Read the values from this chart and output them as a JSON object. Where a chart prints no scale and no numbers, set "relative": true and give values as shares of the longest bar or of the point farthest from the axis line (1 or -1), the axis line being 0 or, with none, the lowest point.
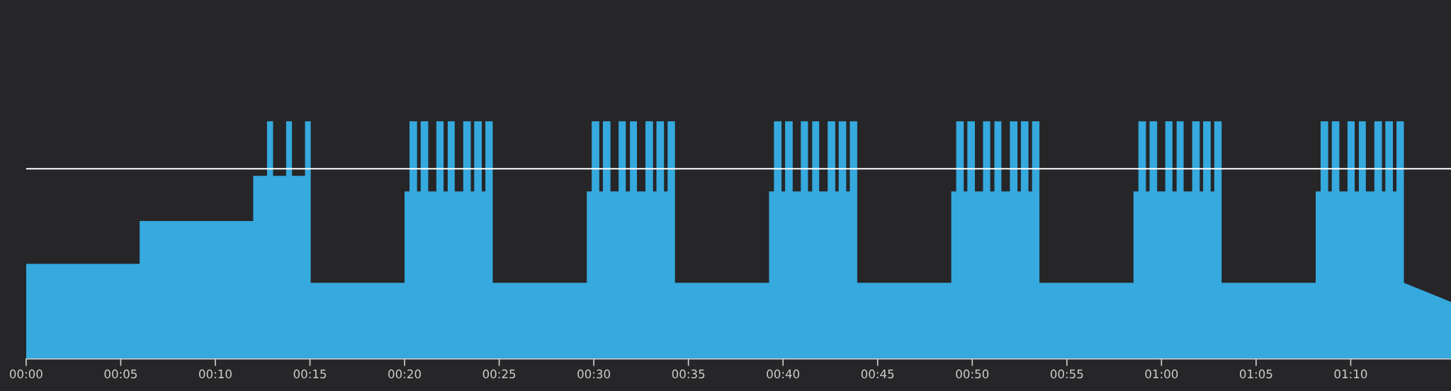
{
  "chart_data": {
    "type": "area",
    "relative": true,
    "grid": false,
    "legend": false,
    "tick_labels": "x",
    "xlim": [
      0,
      75.3
    ],
    "xticks": [
      {
        "value": 0,
        "label": "00:00"
      },
      {
        "value": 5,
        "label": "00:05"
      },
      {
        "value": 10,
        "label": "00:10"
      },
      {
        "value": 15,
        "label": "00:15"
      },
      {
        "value": 20,
        "label": "00:20"
      },
      {
        "value": 25,
        "label": "00:25"
      },
      {
        "value": 30,
        "label": "00:30"
      },
      {
        "value": 35,
        "label": "00:35"
      },
      {
        "value": 40,
        "label": "00:40"
      },
      {
        "value": 45,
        "label": "00:45"
      },
      {
        "value": 50,
        "label": "00:50"
      },
      {
        "value": 55,
        "label": "00:55"
      },
      {
        "value": 60,
        "label": "01:00"
      },
      {
        "value": 65,
        "label": "01:05"
      },
      {
        "value": 70,
        "label": "01:10"
      }
    ],
    "ref_lines": [
      {
        "axis": "y",
        "value": 0.8,
        "color": "#ffffff"
      }
    ],
    "series": [
      {
        "color": "#36a9de",
        "x": [
          0,
          6,
          6,
          12,
          12,
          12.73,
          12.73,
          13.05,
          13.05,
          13.74,
          13.74,
          14.05,
          14.05,
          14.74,
          14.74,
          15.04,
          15.04,
          20.0,
          20.0,
          20.26,
          20.26,
          20.66,
          20.66,
          20.85,
          20.85,
          21.25,
          21.25,
          21.68,
          21.68,
          22.06,
          22.06,
          22.28,
          22.28,
          22.65,
          22.65,
          23.1,
          23.1,
          23.5,
          23.5,
          23.68,
          23.68,
          24.08,
          24.08,
          24.27,
          24.27,
          24.66,
          24.66,
          29.63,
          29.63,
          29.89,
          29.89,
          30.29,
          30.29,
          30.48,
          30.48,
          30.88,
          30.88,
          31.31,
          31.31,
          31.69,
          31.69,
          31.91,
          31.91,
          32.28,
          32.28,
          32.73,
          32.73,
          33.13,
          33.13,
          33.31,
          33.31,
          33.71,
          33.71,
          33.9,
          33.9,
          34.29,
          34.29,
          39.26,
          39.26,
          39.52,
          39.52,
          39.92,
          39.92,
          40.11,
          40.11,
          40.51,
          40.51,
          40.94,
          40.94,
          41.32,
          41.32,
          41.54,
          41.54,
          41.91,
          41.91,
          42.36,
          42.36,
          42.76,
          42.76,
          42.94,
          42.94,
          43.34,
          43.34,
          43.53,
          43.53,
          43.92,
          43.92,
          48.89,
          48.89,
          49.15,
          49.15,
          49.55,
          49.55,
          49.74,
          49.74,
          50.14,
          50.14,
          50.57,
          50.57,
          50.95,
          50.95,
          51.17,
          51.17,
          51.54,
          51.54,
          51.99,
          51.99,
          52.39,
          52.39,
          52.57,
          52.57,
          52.97,
          52.97,
          53.16,
          53.16,
          53.55,
          53.55,
          58.52,
          58.52,
          58.78,
          58.78,
          59.18,
          59.18,
          59.37,
          59.37,
          59.77,
          59.77,
          60.2,
          60.2,
          60.58,
          60.58,
          60.8,
          60.8,
          61.17,
          61.17,
          61.62,
          61.62,
          62.02,
          62.02,
          62.2,
          62.2,
          62.6,
          62.6,
          62.79,
          62.79,
          63.18,
          63.18,
          68.15,
          68.15,
          68.41,
          68.41,
          68.81,
          68.81,
          69.0,
          69.0,
          69.4,
          69.4,
          69.83,
          69.83,
          70.21,
          70.21,
          70.43,
          70.43,
          70.8,
          70.8,
          71.25,
          71.25,
          71.65,
          71.65,
          71.83,
          71.83,
          72.23,
          72.23,
          72.42,
          72.42,
          72.81,
          72.81,
          75.3
        ],
        "values": [
          0.4,
          0.4,
          0.58,
          0.58,
          0.77,
          0.77,
          1,
          1,
          0.77,
          0.77,
          1,
          1,
          0.77,
          0.77,
          1,
          1,
          0.32,
          0.32,
          0.705,
          0.705,
          1,
          1,
          0.705,
          0.705,
          1,
          1,
          0.705,
          0.705,
          1,
          1,
          0.705,
          0.705,
          1,
          1,
          0.705,
          0.705,
          1,
          1,
          0.705,
          0.705,
          1,
          1,
          0.705,
          0.705,
          1,
          1,
          0.32,
          0.32,
          0.705,
          0.705,
          1,
          1,
          0.705,
          0.705,
          1,
          1,
          0.705,
          0.705,
          1,
          1,
          0.705,
          0.705,
          1,
          1,
          0.705,
          0.705,
          1,
          1,
          0.705,
          0.705,
          1,
          1,
          0.705,
          0.705,
          1,
          1,
          0.32,
          0.32,
          0.705,
          0.705,
          1,
          1,
          0.705,
          0.705,
          1,
          1,
          0.705,
          0.705,
          1,
          1,
          0.705,
          0.705,
          1,
          1,
          0.705,
          0.705,
          1,
          1,
          0.705,
          0.705,
          1,
          1,
          0.705,
          0.705,
          1,
          1,
          0.32,
          0.32,
          0.705,
          0.705,
          1,
          1,
          0.705,
          0.705,
          1,
          1,
          0.705,
          0.705,
          1,
          1,
          0.705,
          0.705,
          1,
          1,
          0.705,
          0.705,
          1,
          1,
          0.705,
          0.705,
          1,
          1,
          0.705,
          0.705,
          1,
          1,
          0.32,
          0.32,
          0.705,
          0.705,
          1,
          1,
          0.705,
          0.705,
          1,
          1,
          0.705,
          0.705,
          1,
          1,
          0.705,
          0.705,
          1,
          1,
          0.705,
          0.705,
          1,
          1,
          0.705,
          0.705,
          1,
          1,
          0.705,
          0.705,
          1,
          1,
          0.32,
          0.32,
          0.705,
          0.705,
          1,
          1,
          0.705,
          0.705,
          1,
          1,
          0.705,
          0.705,
          1,
          1,
          0.705,
          0.705,
          1,
          1,
          0.705,
          0.705,
          1,
          1,
          0.705,
          0.705,
          1,
          1,
          0.705,
          0.705,
          1,
          1,
          0.32,
          0.24
        ]
      }
    ]
  }
}
